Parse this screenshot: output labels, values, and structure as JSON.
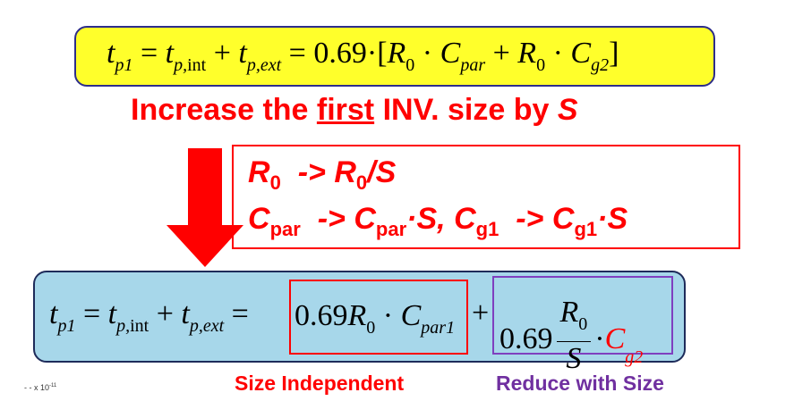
{
  "top_equation": {
    "t": "t",
    "t_sub": "p1",
    "eq1": "=",
    "tp": "t",
    "tp_sub": "p,",
    "int": "int",
    "plus1": "+",
    "te": "t",
    "te_sub": "p,ext",
    "eq2": "=",
    "coef": "0.69",
    "dot1": "·",
    "bracket_open": "[",
    "r1": "R",
    "r1_sub": "0",
    "dot2": "·",
    "c1": "C",
    "c1_sub": "par",
    "plus2": "+",
    "r2": "R",
    "r2_sub": "0",
    "dot3": "·",
    "c2": "C",
    "c2_sub": "g2",
    "bracket_close": "]"
  },
  "headline": {
    "before": "Increase the ",
    "underlined": "first",
    "after": " INV. size by ",
    "var": "S"
  },
  "rules": {
    "r1_lhs": "R",
    "r1_lhs_sub": "0",
    "r1_arrow": "->",
    "r1_rhs": "R",
    "r1_rhs_sub": "0",
    "r1_rhs_tail": "/S",
    "r2_lhs": "C",
    "r2_lhs_sub": "par",
    "r2_arrow": "->",
    "r2_rhs": "C",
    "r2_rhs_sub": "par",
    "r2_rhs_tail": "·S,",
    "r3_lhs": "C",
    "r3_lhs_sub": "g1",
    "r3_arrow": "->",
    "r3_rhs": "C",
    "r3_rhs_sub": "g1",
    "r3_rhs_tail": "·S"
  },
  "bottom_equation": {
    "t": "t",
    "t_sub": "p1",
    "eq1": "=",
    "tp": "t",
    "tp_sub": "p,",
    "int": "int",
    "plus1": "+",
    "te": "t",
    "te_sub": "p,ext",
    "eq2": "=",
    "indep_coef": "0.69",
    "indep_r": "R",
    "indep_r_sub": "0",
    "indep_dot": "·",
    "indep_c": "C",
    "indep_c_sub": "par1",
    "plus2": "+",
    "reduce_coef": "0.69",
    "frac_num": "R",
    "frac_num_sub": "0",
    "frac_den": "S",
    "reduce_dot": "·",
    "reduce_c": "C",
    "reduce_c_sub": "g2"
  },
  "labels": {
    "size_independent": "Size Independent",
    "reduce_with_size": "Reduce with Size"
  },
  "axis_scale": {
    "prefix": "- - x 10",
    "exp": "-11"
  },
  "colors": {
    "top_box": "#ffff2b",
    "bottom_box": "#a7d7ea",
    "red": "#ff0000",
    "purple": "#7030a0"
  }
}
